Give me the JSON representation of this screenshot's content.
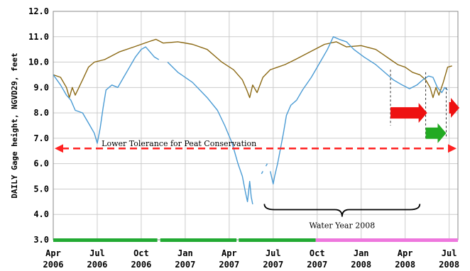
{
  "chart_data": {
    "type": "line",
    "ylabel": "DAILY Gage height, NGVD29, feet",
    "ylim": [
      3.0,
      12.0
    ],
    "y_ticks": [
      "3.0",
      "4.0",
      "5.0",
      "6.0",
      "7.0",
      "8.0",
      "9.0",
      "10.0",
      "11.0",
      "12.0"
    ],
    "y_tick_values": [
      3,
      4,
      5,
      6,
      7,
      8,
      9,
      10,
      11,
      12
    ],
    "x_ticks": [
      {
        "m": "Apr",
        "y": "2006",
        "t": 0
      },
      {
        "m": "Jul",
        "y": "2006",
        "t": 3
      },
      {
        "m": "Oct",
        "y": "2006",
        "t": 6
      },
      {
        "m": "Jan",
        "y": "2007",
        "t": 9
      },
      {
        "m": "Apr",
        "y": "2007",
        "t": 12
      },
      {
        "m": "Jul",
        "y": "2007",
        "t": 15
      },
      {
        "m": "Oct",
        "y": "2007",
        "t": 18
      },
      {
        "m": "Jan",
        "y": "2008",
        "t": 21
      },
      {
        "m": "Apr",
        "y": "2008",
        "t": 24
      },
      {
        "m": "Jul",
        "y": "2008",
        "t": 27
      }
    ],
    "grid": true,
    "series": [
      {
        "color": "#8B6914",
        "points": [
          [
            0,
            9.5
          ],
          [
            0.5,
            9.4
          ],
          [
            0.9,
            9.0
          ],
          [
            1.1,
            8.6
          ],
          [
            1.3,
            9.0
          ],
          [
            1.5,
            8.7
          ],
          [
            2.0,
            9.3
          ],
          [
            2.4,
            9.8
          ],
          [
            2.8,
            10.0
          ],
          [
            3.5,
            10.1
          ],
          [
            4.5,
            10.4
          ],
          [
            5.5,
            10.6
          ],
          [
            6.5,
            10.8
          ],
          [
            7.0,
            10.9
          ],
          [
            7.5,
            10.75
          ],
          [
            8.5,
            10.8
          ],
          [
            9.5,
            10.7
          ],
          [
            10.5,
            10.5
          ],
          [
            11.5,
            10.0
          ],
          [
            12.3,
            9.7
          ],
          [
            12.9,
            9.3
          ],
          [
            13.2,
            8.9
          ],
          [
            13.4,
            8.6
          ],
          [
            13.6,
            9.1
          ],
          [
            13.9,
            8.8
          ],
          [
            14.3,
            9.4
          ],
          [
            14.8,
            9.7
          ],
          [
            15.3,
            9.8
          ],
          [
            15.8,
            9.9
          ],
          [
            16.5,
            10.1
          ],
          [
            17.5,
            10.4
          ],
          [
            18.5,
            10.7
          ],
          [
            19.3,
            10.8
          ],
          [
            20.0,
            10.6
          ],
          [
            21.0,
            10.65
          ],
          [
            22.0,
            10.5
          ],
          [
            22.5,
            10.3
          ],
          [
            23.0,
            10.1
          ],
          [
            23.5,
            9.9
          ],
          [
            24.0,
            9.8
          ],
          [
            24.5,
            9.6
          ],
          [
            25.0,
            9.5
          ],
          [
            25.4,
            9.3
          ],
          [
            25.7,
            9.0
          ],
          [
            25.9,
            8.6
          ],
          [
            26.1,
            9.0
          ],
          [
            26.3,
            8.7
          ],
          [
            26.6,
            9.2
          ],
          [
            26.9,
            9.8
          ],
          [
            27.2,
            9.85
          ]
        ]
      },
      {
        "color": "#4A9BD4",
        "segments": [
          [
            [
              0,
              9.5
            ],
            [
              0.5,
              9.1
            ],
            [
              0.9,
              8.7
            ],
            [
              1.2,
              8.5
            ],
            [
              1.5,
              8.1
            ],
            [
              2.0,
              8.0
            ],
            [
              2.4,
              7.6
            ],
            [
              2.8,
              7.2
            ],
            [
              3.0,
              6.8
            ],
            [
              3.2,
              7.4
            ],
            [
              3.4,
              8.2
            ],
            [
              3.6,
              8.9
            ],
            [
              4.0,
              9.1
            ],
            [
              4.4,
              9.0
            ],
            [
              4.8,
              9.4
            ],
            [
              5.2,
              9.8
            ],
            [
              5.6,
              10.2
            ],
            [
              6.0,
              10.5
            ],
            [
              6.3,
              10.6
            ],
            [
              6.6,
              10.4
            ],
            [
              6.9,
              10.2
            ],
            [
              7.2,
              10.1
            ]
          ],
          [
            [
              7.8,
              10.0
            ],
            [
              8.5,
              9.6
            ],
            [
              9.5,
              9.2
            ],
            [
              10.5,
              8.6
            ],
            [
              11.2,
              8.1
            ],
            [
              11.7,
              7.5
            ],
            [
              12.2,
              6.8
            ],
            [
              12.6,
              6.0
            ],
            [
              12.9,
              5.5
            ],
            [
              13.1,
              4.9
            ],
            [
              13.25,
              4.5
            ],
            [
              13.4,
              5.3
            ],
            [
              13.5,
              4.7
            ],
            [
              13.6,
              4.4
            ]
          ],
          [
            [
              14.2,
              5.6
            ],
            [
              14.3,
              5.7
            ]
          ],
          [
            [
              14.5,
              5.9
            ],
            [
              14.6,
              6.0
            ]
          ],
          [
            [
              14.8,
              5.7
            ],
            [
              15.0,
              5.2
            ],
            [
              15.1,
              5.5
            ],
            [
              15.3,
              6.0
            ],
            [
              15.5,
              6.6
            ],
            [
              15.7,
              7.2
            ],
            [
              15.9,
              7.9
            ],
            [
              16.2,
              8.3
            ],
            [
              16.6,
              8.5
            ],
            [
              17.0,
              8.9
            ],
            [
              17.6,
              9.4
            ],
            [
              18.2,
              10.0
            ],
            [
              18.7,
              10.5
            ],
            [
              19.1,
              11.0
            ],
            [
              19.5,
              10.9
            ],
            [
              20.0,
              10.8
            ],
            [
              20.5,
              10.5
            ],
            [
              21.2,
              10.2
            ],
            [
              22.0,
              9.9
            ],
            [
              22.6,
              9.6
            ],
            [
              23.2,
              9.3
            ],
            [
              23.8,
              9.1
            ],
            [
              24.3,
              8.95
            ],
            [
              24.8,
              9.1
            ],
            [
              25.2,
              9.3
            ],
            [
              25.6,
              9.45
            ],
            [
              25.9,
              9.4
            ],
            [
              26.2,
              9.0
            ],
            [
              26.5,
              8.8
            ],
            [
              26.7,
              9.0
            ],
            [
              26.9,
              8.9
            ]
          ]
        ]
      }
    ],
    "tolerance_line": {
      "y": 6.6,
      "color": "#FF2222"
    },
    "annotations": {
      "tolerance_label": "Lower Tolerance for Peat Conservation",
      "water_year_label": "Water Year 2008"
    },
    "status_bar": [
      {
        "from": 0,
        "to": 7.1,
        "color": "#22AA33"
      },
      {
        "from": 7.3,
        "to": 12.5,
        "color": "#22AA33"
      },
      {
        "from": 12.65,
        "to": 17.9,
        "color": "#22AA33"
      },
      {
        "from": 17.9,
        "to": 27.6,
        "color": "#EE77DD"
      }
    ],
    "arrows": [
      {
        "color": "#EE1111",
        "y": 8.0,
        "from": 23.0,
        "to": 25.5
      },
      {
        "color": "#22AA22",
        "y": 7.2,
        "from": 25.4,
        "to": 26.8
      },
      {
        "color": "#EE1111",
        "y": 8.2,
        "from": 27.0,
        "to": 27.7
      }
    ]
  }
}
